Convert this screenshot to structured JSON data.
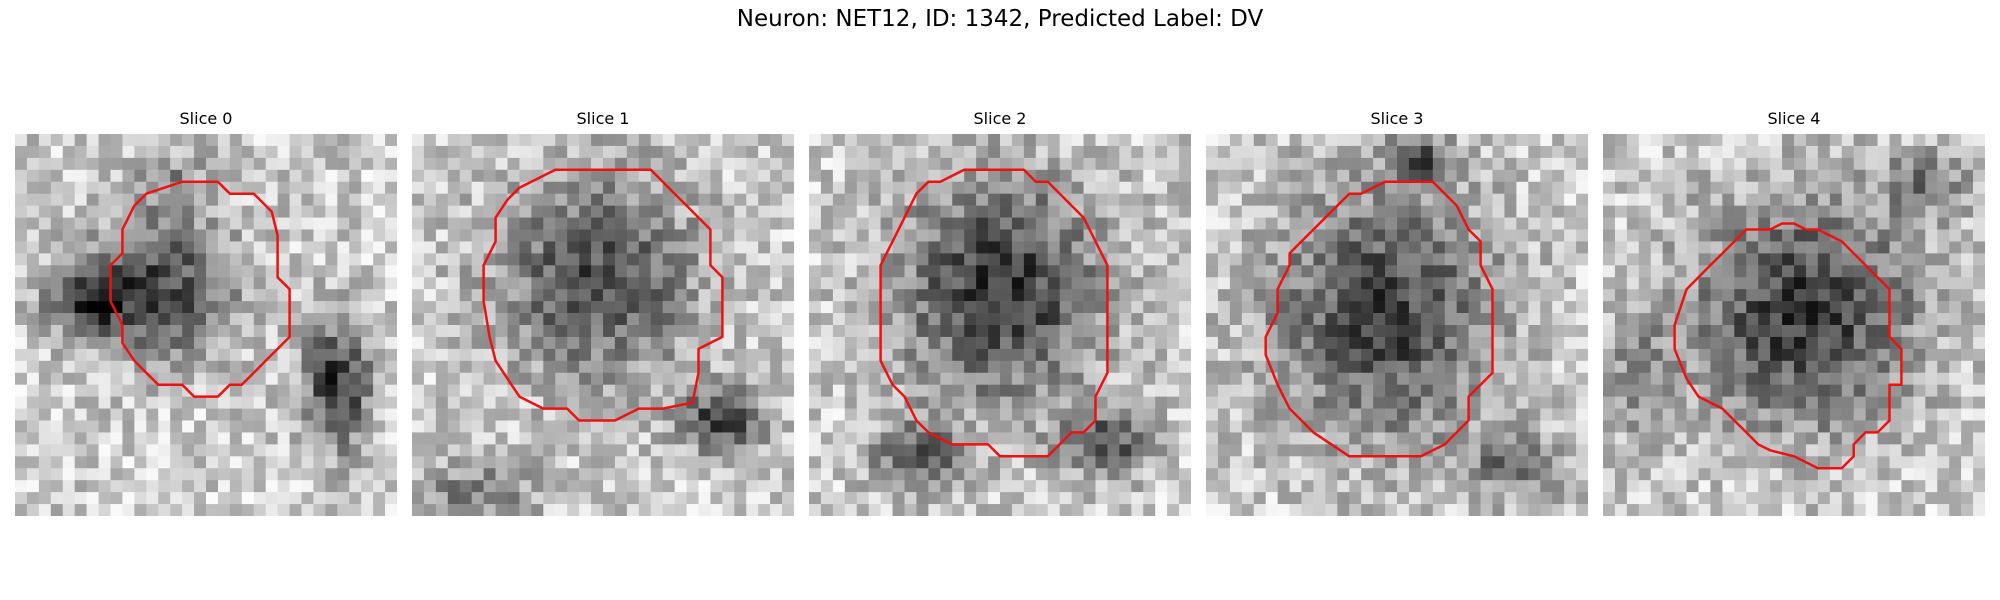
{
  "figure": {
    "title": "Neuron: NET12, ID: 1342, Predicted Label: DV"
  },
  "panels": [
    {
      "title": "Slice 0"
    },
    {
      "title": "Slice 1"
    },
    {
      "title": "Slice 2"
    },
    {
      "title": "Slice 3"
    },
    {
      "title": "Slice 4"
    }
  ],
  "colors": {
    "contour": "#ee1111",
    "background": "#ffffff"
  }
}
